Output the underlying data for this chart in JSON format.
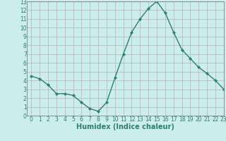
{
  "x": [
    0,
    1,
    2,
    3,
    4,
    5,
    6,
    7,
    8,
    9,
    10,
    11,
    12,
    13,
    14,
    15,
    16,
    17,
    18,
    19,
    20,
    21,
    22,
    23
  ],
  "y": [
    4.5,
    4.2,
    3.5,
    2.5,
    2.5,
    2.3,
    1.5,
    0.8,
    0.5,
    1.5,
    4.3,
    7.0,
    9.5,
    11.0,
    12.2,
    13.0,
    11.7,
    9.5,
    7.5,
    6.5,
    5.5,
    4.8,
    4.0,
    3.0
  ],
  "line_color": "#2d7f72",
  "marker": "D",
  "markersize": 2.2,
  "linewidth": 1.0,
  "bg_color": "#cceee8",
  "grid_color": "#b8b0b8",
  "xlabel": "Humidex (Indice chaleur)",
  "xlim": [
    -0.5,
    23
  ],
  "ylim": [
    0,
    13
  ],
  "xticks": [
    0,
    1,
    2,
    3,
    4,
    5,
    6,
    7,
    8,
    9,
    10,
    11,
    12,
    13,
    14,
    15,
    16,
    17,
    18,
    19,
    20,
    21,
    22,
    23
  ],
  "yticks": [
    0,
    1,
    2,
    3,
    4,
    5,
    6,
    7,
    8,
    9,
    10,
    11,
    12,
    13
  ],
  "tick_fontsize": 5.5,
  "xlabel_fontsize": 7.0,
  "tick_color": "#2d7f72",
  "axis_color": "#2d7f72",
  "spine_color": "#808080"
}
